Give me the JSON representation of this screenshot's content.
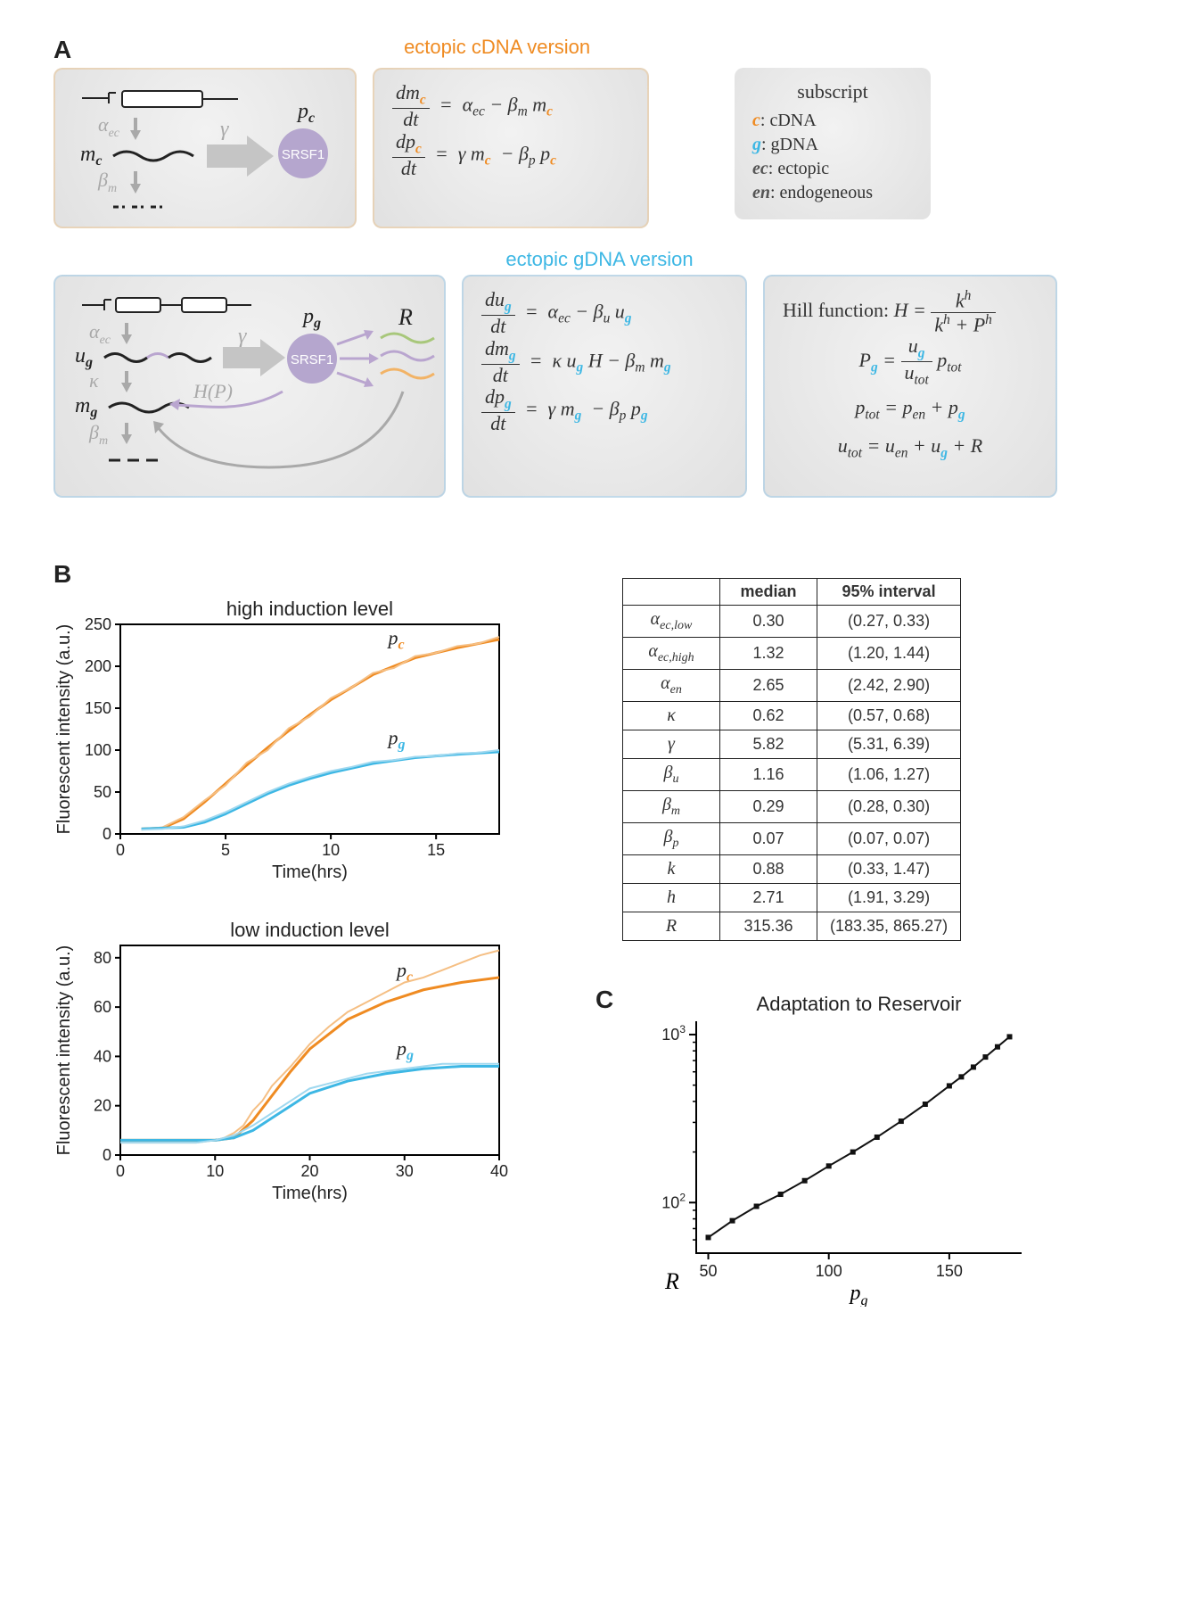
{
  "panelA": {
    "letter": "A",
    "title_cdna": "ectopic cDNA version",
    "title_cdna_color": "#ef8b22",
    "title_gdna": "ectopic gDNA version",
    "title_gdna_color": "#3db7e4",
    "legend_title": "subscript",
    "legend": [
      {
        "sym": "c",
        "color": "#ef8b22",
        "desc": ": cDNA"
      },
      {
        "sym": "g",
        "color": "#3db7e4",
        "desc": ": gDNA"
      },
      {
        "sym": "ec",
        "color": "#555",
        "desc": ": ectopic"
      },
      {
        "sym": "en",
        "color": "#555",
        "desc": ": endogeneous"
      }
    ],
    "srsf_label": "SRSF1",
    "cdna": {
      "labels": {
        "alpha": "α",
        "beta": "β",
        "gamma": "γ",
        "m": "m",
        "p": "p",
        "sub_ec": "ec",
        "sub_m": "m",
        "sub_c": "c"
      },
      "eq1": {
        "lhs_num": "dm",
        "lhs_den": "dt",
        "rhs": "α_{ec} − β_m m"
      },
      "eq2": {
        "lhs_num": "dp",
        "lhs_den": "dt",
        "rhs": "γ m  − β_p p"
      }
    },
    "gdna": {
      "labels": {
        "u": "u",
        "kappa": "κ",
        "HP": "H(P)",
        "R": "R"
      },
      "eq1": {
        "lhs_num": "du",
        "lhs_den": "dt",
        "rhs": "α_{ec} − β_u u"
      },
      "eq2": {
        "lhs_num": "dm",
        "lhs_den": "dt",
        "rhs": "κ u H − β_m m"
      },
      "eq3": {
        "lhs_num": "dp",
        "lhs_den": "dt",
        "rhs": "γ m  − β_p p"
      },
      "hill_label": "Hill function:  ",
      "hill_num": "k^h",
      "hill_den": "k^h + P^h",
      "Pg": "P_g = (u_g / u_tot) · p_tot",
      "ptot": "p_tot = p_en + p_g",
      "utot": "u_tot = u_en + u_g + R"
    },
    "colors": {
      "schematic_gray": "#a9a9a9",
      "purple": "#a896c8",
      "wavy_orange": "#f2b366",
      "wavy_green": "#a8c77b",
      "wavy_purple": "#b9a5cf"
    }
  },
  "panelB": {
    "letter": "B",
    "chart_high": {
      "title": "high induction level",
      "xlabel": "Time(hrs)",
      "ylabel": "Fluorescent intensity (a.u.)",
      "xlim": [
        0,
        18
      ],
      "xticks": [
        0,
        5,
        10,
        15
      ],
      "ylim": [
        0,
        250
      ],
      "yticks": [
        0,
        50,
        100,
        150,
        200,
        250
      ],
      "series": [
        {
          "name": "pc_fit",
          "color": "#ef8b22",
          "width": 3,
          "label": "p_c",
          "label_color": "#ef8b22",
          "points": [
            [
              1,
              6
            ],
            [
              2,
              7
            ],
            [
              3,
              18
            ],
            [
              4,
              38
            ],
            [
              5,
              60
            ],
            [
              6,
              82
            ],
            [
              7,
              103
            ],
            [
              8,
              123
            ],
            [
              9,
              142
            ],
            [
              10,
              160
            ],
            [
              12,
              190
            ],
            [
              14,
              210
            ],
            [
              16,
              222
            ],
            [
              18,
              232
            ]
          ]
        },
        {
          "name": "pc_raw",
          "color": "#f5bf84",
          "width": 2,
          "points": [
            [
              1,
              5
            ],
            [
              2,
              8
            ],
            [
              2.5,
              14
            ],
            [
              3,
              20
            ],
            [
              4,
              40
            ],
            [
              5,
              58
            ],
            [
              6,
              85
            ],
            [
              7,
              100
            ],
            [
              8,
              126
            ],
            [
              9,
              140
            ],
            [
              10,
              162
            ],
            [
              11,
              175
            ],
            [
              12,
              192
            ],
            [
              13,
              198
            ],
            [
              14,
              212
            ],
            [
              15,
              216
            ],
            [
              16,
              224
            ],
            [
              17,
              227
            ],
            [
              18,
              235
            ]
          ]
        },
        {
          "name": "pg_fit",
          "color": "#3db7e4",
          "width": 3,
          "label": "p_g",
          "label_color": "#3db7e4",
          "points": [
            [
              1,
              6
            ],
            [
              3,
              8
            ],
            [
              4,
              14
            ],
            [
              5,
              24
            ],
            [
              6,
              36
            ],
            [
              7,
              48
            ],
            [
              8,
              58
            ],
            [
              9,
              66
            ],
            [
              10,
              73
            ],
            [
              12,
              84
            ],
            [
              14,
              91
            ],
            [
              16,
              95
            ],
            [
              18,
              98
            ]
          ]
        },
        {
          "name": "pg_raw",
          "color": "#9fd8ef",
          "width": 2,
          "points": [
            [
              1,
              5
            ],
            [
              2,
              6
            ],
            [
              3,
              9
            ],
            [
              4,
              16
            ],
            [
              5,
              26
            ],
            [
              6,
              38
            ],
            [
              7,
              50
            ],
            [
              8,
              60
            ],
            [
              9,
              68
            ],
            [
              10,
              75
            ],
            [
              11,
              80
            ],
            [
              12,
              86
            ],
            [
              13,
              88
            ],
            [
              14,
              92
            ],
            [
              15,
              93
            ],
            [
              16,
              96
            ],
            [
              17,
              97
            ],
            [
              18,
              100
            ]
          ]
        }
      ],
      "background": "#ffffff",
      "axis_color": "#000000"
    },
    "chart_low": {
      "title": "low induction level",
      "xlabel": "Time(hrs)",
      "ylabel": "Fluorescent intensity (a.u.)",
      "xlim": [
        0,
        40
      ],
      "xticks": [
        0,
        10,
        20,
        30,
        40
      ],
      "ylim": [
        0,
        85
      ],
      "yticks": [
        0,
        20,
        40,
        60,
        80
      ],
      "series": [
        {
          "name": "pc_fit",
          "color": "#ef8b22",
          "width": 3,
          "label": "p_c",
          "label_color": "#ef8b22",
          "points": [
            [
              0,
              6
            ],
            [
              10,
              6
            ],
            [
              12,
              7
            ],
            [
              14,
              14
            ],
            [
              16,
              24
            ],
            [
              18,
              34
            ],
            [
              20,
              43
            ],
            [
              24,
              55
            ],
            [
              28,
              62
            ],
            [
              32,
              67
            ],
            [
              36,
              70
            ],
            [
              40,
              72
            ]
          ]
        },
        {
          "name": "pc_raw",
          "color": "#f5bf84",
          "width": 2,
          "points": [
            [
              0,
              5
            ],
            [
              8,
              5
            ],
            [
              10,
              6
            ],
            [
              11,
              7
            ],
            [
              12,
              9
            ],
            [
              13,
              12
            ],
            [
              14,
              18
            ],
            [
              15,
              22
            ],
            [
              16,
              28
            ],
            [
              18,
              36
            ],
            [
              20,
              45
            ],
            [
              22,
              52
            ],
            [
              24,
              58
            ],
            [
              26,
              62
            ],
            [
              28,
              66
            ],
            [
              30,
              70
            ],
            [
              32,
              72
            ],
            [
              34,
              75
            ],
            [
              36,
              78
            ],
            [
              38,
              81
            ],
            [
              40,
              83
            ]
          ]
        },
        {
          "name": "pg_fit",
          "color": "#3db7e4",
          "width": 3,
          "label": "p_g",
          "label_color": "#3db7e4",
          "points": [
            [
              0,
              6
            ],
            [
              10,
              6
            ],
            [
              12,
              7
            ],
            [
              14,
              10
            ],
            [
              16,
              15
            ],
            [
              18,
              20
            ],
            [
              20,
              25
            ],
            [
              24,
              30
            ],
            [
              28,
              33
            ],
            [
              32,
              35
            ],
            [
              36,
              36
            ],
            [
              40,
              36
            ]
          ]
        },
        {
          "name": "pg_raw",
          "color": "#9fd8ef",
          "width": 2,
          "points": [
            [
              0,
              5
            ],
            [
              8,
              5
            ],
            [
              10,
              6
            ],
            [
              12,
              8
            ],
            [
              14,
              12
            ],
            [
              16,
              17
            ],
            [
              18,
              22
            ],
            [
              20,
              27
            ],
            [
              22,
              29
            ],
            [
              24,
              31
            ],
            [
              26,
              33
            ],
            [
              28,
              34
            ],
            [
              30,
              35
            ],
            [
              32,
              36
            ],
            [
              34,
              37
            ],
            [
              36,
              37
            ],
            [
              38,
              37
            ],
            [
              40,
              37
            ]
          ]
        }
      ],
      "background": "#ffffff",
      "axis_color": "#000000"
    },
    "table": {
      "columns": [
        "",
        "median",
        "95% interval"
      ],
      "rows": [
        [
          "α_{ec,low}",
          "0.30",
          "(0.27, 0.33)"
        ],
        [
          "α_{ec,high}",
          "1.32",
          "(1.20, 1.44)"
        ],
        [
          "α_{en}",
          "2.65",
          "(2.42, 2.90)"
        ],
        [
          "κ",
          "0.62",
          "(0.57, 0.68)"
        ],
        [
          "γ",
          "5.82",
          "(5.31, 6.39)"
        ],
        [
          "β_u",
          "1.16",
          "(1.06, 1.27)"
        ],
        [
          "β_m",
          "0.29",
          "(0.28, 0.30)"
        ],
        [
          "β_p",
          "0.07",
          "(0.07, 0.07)"
        ],
        [
          "k",
          "0.88",
          "(0.33, 1.47)"
        ],
        [
          "h",
          "2.71",
          "(1.91, 3.29)"
        ],
        [
          "R",
          "315.36",
          "(183.35, 865.27)"
        ]
      ]
    }
  },
  "panelC": {
    "letter": "C",
    "title": "Adaptation to Reservoir",
    "xlabel": "p_g",
    "ylabel": "R",
    "xlim": [
      45,
      180
    ],
    "xticks": [
      50,
      100,
      150
    ],
    "ylim_log": [
      50,
      1200
    ],
    "yticks": [
      100,
      1000
    ],
    "ytick_labels": [
      "10^2",
      "10^3"
    ],
    "points": [
      [
        50,
        62
      ],
      [
        60,
        78
      ],
      [
        70,
        95
      ],
      [
        80,
        112
      ],
      [
        90,
        135
      ],
      [
        100,
        165
      ],
      [
        110,
        200
      ],
      [
        120,
        245
      ],
      [
        130,
        305
      ],
      [
        140,
        385
      ],
      [
        150,
        495
      ],
      [
        155,
        560
      ],
      [
        160,
        640
      ],
      [
        165,
        735
      ],
      [
        170,
        845
      ],
      [
        175,
        970
      ]
    ],
    "marker_color": "#111",
    "line_color": "#111",
    "line_width": 2,
    "background": "#ffffff",
    "axis_color": "#000000"
  }
}
